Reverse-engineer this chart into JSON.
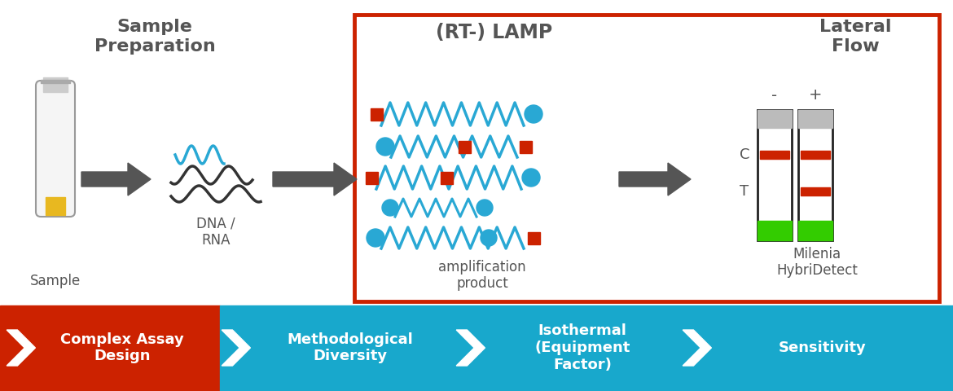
{
  "bg_color": "#ffffff",
  "red_border_color": "#cc2200",
  "arrow_color": "#555555",
  "blue_color": "#29a8d4",
  "red_square_color": "#cc2200",
  "title_sample_prep": "Sample\nPreparation",
  "title_lamp": "(RT-) LAMP",
  "title_lateral_flow": "Lateral\nFlow",
  "label_sample": "Sample",
  "label_dna_rna": "DNA /\nRNA",
  "label_amplification": "amplification\nproduct",
  "label_milenia": "Milenia\nHybriDetect",
  "bottom_bar_red_color": "#cc2200",
  "bottom_bar_blue_color": "#18a8cc",
  "bottom_labels": [
    "Complex Assay\nDesign",
    "Methodological\nDiversity",
    "Isothermal\n(Equipment\nFactor)",
    "Sensitivity"
  ],
  "tube_yellow": "#e8b820",
  "green_color": "#33cc00",
  "gray_color": "#999999",
  "light_gray": "#cccccc",
  "dark_gray": "#555555"
}
